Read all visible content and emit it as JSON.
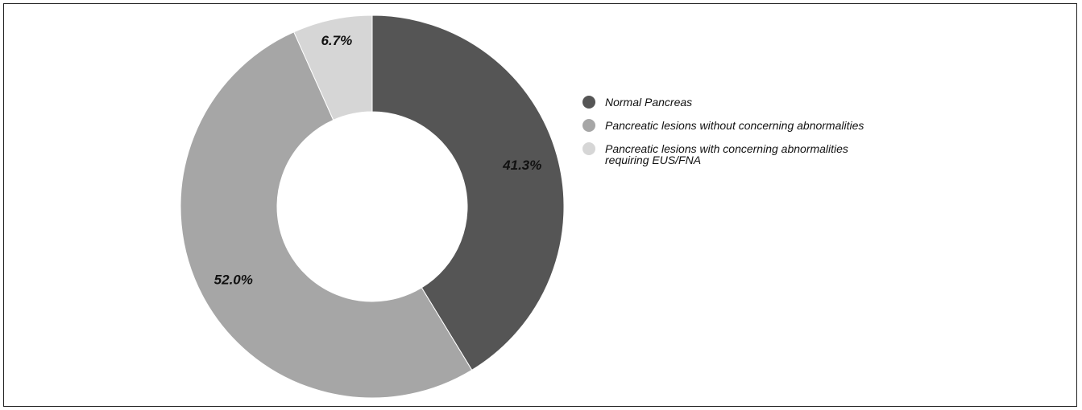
{
  "chart_data": {
    "type": "pie",
    "donut": true,
    "title": "",
    "categories": [
      "Normal Pancreas",
      "Pancreatic lesions without concerning abnormalities",
      "Pancreatic lesions with concerning abnormalities requiring EUS/FNA"
    ],
    "values": [
      41.3,
      52.0,
      6.7
    ],
    "data_labels": [
      "41.3%",
      "52.0%",
      "6.7%"
    ],
    "colors": [
      "#555555",
      "#a6a6a6",
      "#d6d6d6"
    ],
    "legend": {
      "placement": "right",
      "items": [
        {
          "lines": [
            "Normal Pancreas"
          ]
        },
        {
          "lines": [
            "Pancreatic lesions without concerning abnormalities"
          ]
        },
        {
          "lines": [
            "Pancreatic lesions with concerning abnormalities",
            "requiring EUS/FNA"
          ]
        }
      ]
    }
  }
}
